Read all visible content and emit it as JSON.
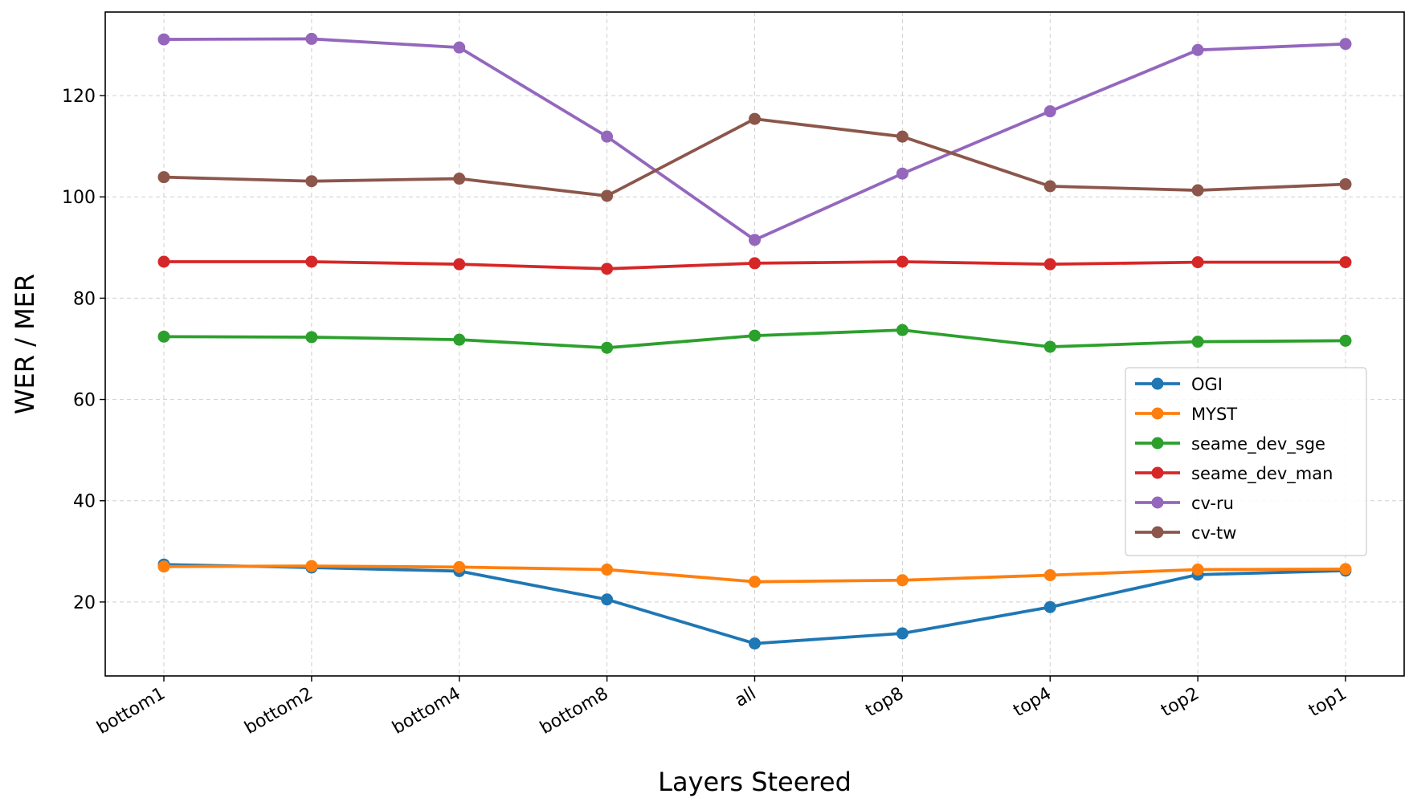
{
  "chart_data": {
    "type": "line",
    "xlabel": "Layers Steered",
    "ylabel": "WER / MER",
    "categories": [
      "bottom1",
      "bottom2",
      "bottom4",
      "bottom8",
      "all",
      "top8",
      "top4",
      "top2",
      "top1"
    ],
    "ylim": [
      5.4,
      136.5
    ],
    "yticks": [
      20,
      40,
      60,
      80,
      100,
      120
    ],
    "grid": true,
    "legend_position": "center-right",
    "series": [
      {
        "name": "OGI",
        "color": "#1f77b4",
        "values": [
          27.4,
          26.8,
          26.1,
          20.5,
          11.8,
          13.8,
          19.0,
          25.4,
          26.2
        ]
      },
      {
        "name": "MYST",
        "color": "#ff7f0e",
        "values": [
          27.0,
          27.1,
          26.9,
          26.4,
          24.0,
          24.3,
          25.3,
          26.4,
          26.5
        ]
      },
      {
        "name": "seame_dev_sge",
        "color": "#2ca02c",
        "values": [
          72.4,
          72.3,
          71.8,
          70.2,
          72.6,
          73.7,
          70.4,
          71.4,
          71.6
        ]
      },
      {
        "name": "seame_dev_man",
        "color": "#d62728",
        "values": [
          87.2,
          87.2,
          86.7,
          85.8,
          86.9,
          87.2,
          86.7,
          87.1,
          87.1
        ]
      },
      {
        "name": "cv-ru",
        "color": "#9467bd",
        "values": [
          131.1,
          131.2,
          129.5,
          111.9,
          91.5,
          104.6,
          116.9,
          129.0,
          130.2
        ]
      },
      {
        "name": "cv-tw",
        "color": "#8c564b",
        "values": [
          103.9,
          103.1,
          103.6,
          100.2,
          115.4,
          111.9,
          102.1,
          101.3,
          102.5
        ]
      }
    ]
  }
}
